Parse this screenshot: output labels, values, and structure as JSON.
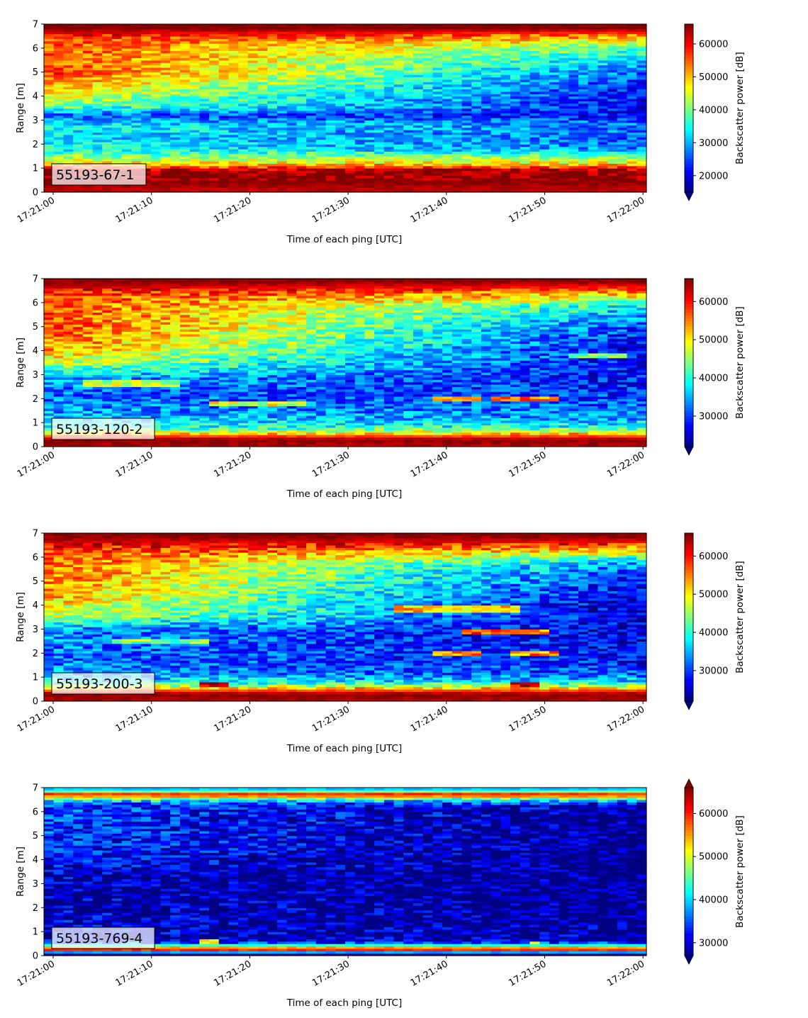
{
  "colormap": "jet",
  "colorbar_label": "Backscatter power [dB]",
  "xlabel": "Time of each ping [UTC]",
  "ylabel": "Range [m]",
  "chart_data": [
    {
      "type": "heatmap",
      "label": "55193-67-1",
      "x_ticks": [
        "17:21:00",
        "17:21:10",
        "17:21:20",
        "17:21:30",
        "17:21:40",
        "17:21:50",
        "17:22:00"
      ],
      "y_ticks": [
        "0",
        "1",
        "2",
        "3",
        "4",
        "5",
        "6",
        "7"
      ],
      "ylim": [
        0,
        7
      ],
      "colorbar_ticks": [
        "20000",
        "30000",
        "40000",
        "50000",
        "60000"
      ],
      "clim": [
        15000,
        66000
      ],
      "colorbar_extend": "min",
      "profile": [
        {
          "range": 0.15,
          "start": 63000,
          "end": 63000
        },
        {
          "range": 0.5,
          "start": 66000,
          "end": 66000
        },
        {
          "range": 0.9,
          "start": 65000,
          "end": 65000
        },
        {
          "range": 1.2,
          "start": 48000,
          "end": 48000
        },
        {
          "range": 1.45,
          "start": 42000,
          "end": 42000
        },
        {
          "range": 1.8,
          "start": 35000,
          "end": 28000
        },
        {
          "range": 2.3,
          "start": 33000,
          "end": 26000
        },
        {
          "range": 2.8,
          "start": 34000,
          "end": 28000
        },
        {
          "range": 3.2,
          "start": 26000,
          "end": 22000
        },
        {
          "range": 3.6,
          "start": 40000,
          "end": 22000
        },
        {
          "range": 4.2,
          "start": 48000,
          "end": 22000
        },
        {
          "range": 5.0,
          "start": 57000,
          "end": 26000
        },
        {
          "range": 5.6,
          "start": 55000,
          "end": 33000
        },
        {
          "range": 6.1,
          "start": 55000,
          "end": 40000
        },
        {
          "range": 6.5,
          "start": 58000,
          "end": 52000
        },
        {
          "range": 6.85,
          "start": 66000,
          "end": 66000
        }
      ],
      "features": []
    },
    {
      "type": "heatmap",
      "label": "55193-120-2",
      "x_ticks": [
        "17:21:00",
        "17:21:10",
        "17:21:20",
        "17:21:30",
        "17:21:40",
        "17:21:50",
        "17:22:00"
      ],
      "y_ticks": [
        "0",
        "1",
        "2",
        "3",
        "4",
        "5",
        "6",
        "7"
      ],
      "ylim": [
        0,
        7
      ],
      "colorbar_ticks": [
        "30000",
        "40000",
        "50000",
        "60000"
      ],
      "clim": [
        22000,
        66000
      ],
      "colorbar_extend": "min",
      "profile": [
        {
          "range": 0.1,
          "start": 64000,
          "end": 64000
        },
        {
          "range": 0.3,
          "start": 66000,
          "end": 66000
        },
        {
          "range": 0.55,
          "start": 52000,
          "end": 52000
        },
        {
          "range": 0.8,
          "start": 40000,
          "end": 40000
        },
        {
          "range": 1.2,
          "start": 36000,
          "end": 34000
        },
        {
          "range": 1.7,
          "start": 33000,
          "end": 31000
        },
        {
          "range": 2.3,
          "start": 32000,
          "end": 29000
        },
        {
          "range": 2.9,
          "start": 35000,
          "end": 28000
        },
        {
          "range": 3.3,
          "start": 44000,
          "end": 28000
        },
        {
          "range": 4.0,
          "start": 53000,
          "end": 27000
        },
        {
          "range": 5.0,
          "start": 58000,
          "end": 30000
        },
        {
          "range": 5.8,
          "start": 57000,
          "end": 37000
        },
        {
          "range": 6.3,
          "start": 58000,
          "end": 50000
        },
        {
          "range": 6.6,
          "start": 62000,
          "end": 58000
        },
        {
          "range": 6.9,
          "start": 66000,
          "end": 66000
        }
      ],
      "features": [
        {
          "t0": 3,
          "t1": 13,
          "r0": 2.55,
          "r1": 2.75,
          "value": 46000
        },
        {
          "t0": 16,
          "t1": 26,
          "r0": 1.7,
          "r1": 1.9,
          "value": 48000
        },
        {
          "t0": 39,
          "t1": 44,
          "r0": 1.95,
          "r1": 2.1,
          "value": 55000
        },
        {
          "t0": 45,
          "t1": 51,
          "r0": 1.95,
          "r1": 2.1,
          "value": 55000
        },
        {
          "t0": 52,
          "t1": 58,
          "r0": 3.75,
          "r1": 3.9,
          "value": 42000
        }
      ]
    },
    {
      "type": "heatmap",
      "label": "55193-200-3",
      "x_ticks": [
        "17:21:00",
        "17:21:10",
        "17:21:20",
        "17:21:30",
        "17:21:40",
        "17:21:50",
        "17:22:00"
      ],
      "y_ticks": [
        "0",
        "1",
        "2",
        "3",
        "4",
        "5",
        "6",
        "7"
      ],
      "ylim": [
        0,
        7
      ],
      "colorbar_ticks": [
        "30000",
        "40000",
        "50000",
        "60000"
      ],
      "clim": [
        22000,
        66000
      ],
      "colorbar_extend": "min",
      "profile": [
        {
          "range": 0.1,
          "start": 64000,
          "end": 64000
        },
        {
          "range": 0.3,
          "start": 66000,
          "end": 66000
        },
        {
          "range": 0.55,
          "start": 52000,
          "end": 52000
        },
        {
          "range": 0.8,
          "start": 38000,
          "end": 38000
        },
        {
          "range": 1.2,
          "start": 34000,
          "end": 30000
        },
        {
          "range": 1.8,
          "start": 32000,
          "end": 28000
        },
        {
          "range": 2.4,
          "start": 33000,
          "end": 27000
        },
        {
          "range": 3.0,
          "start": 34000,
          "end": 26000
        },
        {
          "range": 3.5,
          "start": 46000,
          "end": 26000
        },
        {
          "range": 4.2,
          "start": 52000,
          "end": 25000
        },
        {
          "range": 5.0,
          "start": 55000,
          "end": 28000
        },
        {
          "range": 5.7,
          "start": 56000,
          "end": 33000
        },
        {
          "range": 6.2,
          "start": 58000,
          "end": 48000
        },
        {
          "range": 6.6,
          "start": 62000,
          "end": 60000
        },
        {
          "range": 6.9,
          "start": 66000,
          "end": 66000
        }
      ],
      "features": [
        {
          "t0": 6,
          "t1": 16,
          "r0": 2.4,
          "r1": 2.6,
          "value": 44000
        },
        {
          "t0": 35,
          "t1": 47,
          "r0": 3.75,
          "r1": 3.95,
          "value": 52000
        },
        {
          "t0": 42,
          "t1": 50,
          "r0": 2.85,
          "r1": 3.0,
          "value": 56000
        },
        {
          "t0": 39,
          "t1": 44,
          "r0": 1.95,
          "r1": 2.1,
          "value": 54000
        },
        {
          "t0": 46,
          "t1": 51,
          "r0": 1.95,
          "r1": 2.1,
          "value": 54000
        },
        {
          "t0": 15,
          "t1": 18,
          "r0": 0.6,
          "r1": 0.8,
          "value": 63000
        },
        {
          "t0": 46,
          "t1": 49,
          "r0": 0.6,
          "r1": 0.8,
          "value": 63000
        }
      ]
    },
    {
      "type": "heatmap",
      "label": "55193-769-4",
      "x_ticks": [
        "17:21:00",
        "17:21:10",
        "17:21:20",
        "17:21:30",
        "17:21:40",
        "17:21:50",
        "17:22:00"
      ],
      "y_ticks": [
        "0",
        "1",
        "2",
        "3",
        "4",
        "5",
        "6",
        "7"
      ],
      "ylim": [
        0,
        7
      ],
      "colorbar_ticks": [
        "30000",
        "40000",
        "50000",
        "60000"
      ],
      "clim": [
        27000,
        66000
      ],
      "colorbar_extend": "both",
      "profile": [
        {
          "range": 0.1,
          "start": 27000,
          "end": 27000
        },
        {
          "range": 0.28,
          "start": 66000,
          "end": 66000
        },
        {
          "range": 0.38,
          "start": 50000,
          "end": 50000
        },
        {
          "range": 0.6,
          "start": 30000,
          "end": 29000
        },
        {
          "range": 1.5,
          "start": 30000,
          "end": 27500
        },
        {
          "range": 3.0,
          "start": 29000,
          "end": 27000
        },
        {
          "range": 4.5,
          "start": 33000,
          "end": 27000
        },
        {
          "range": 5.5,
          "start": 34000,
          "end": 27000
        },
        {
          "range": 6.3,
          "start": 34000,
          "end": 29000
        },
        {
          "range": 6.55,
          "start": 45000,
          "end": 45000
        },
        {
          "range": 6.72,
          "start": 63000,
          "end": 63000
        },
        {
          "range": 6.9,
          "start": 40000,
          "end": 40000
        }
      ],
      "features": [
        {
          "t0": 15,
          "t1": 17,
          "r0": 0.5,
          "r1": 0.7,
          "value": 50000
        },
        {
          "t0": 48,
          "t1": 49,
          "r0": 0.45,
          "r1": 0.6,
          "value": 48000
        },
        {
          "t0": 34,
          "t1": 35,
          "r0": 0.3,
          "r1": 0.4,
          "value": 58000
        }
      ]
    }
  ]
}
